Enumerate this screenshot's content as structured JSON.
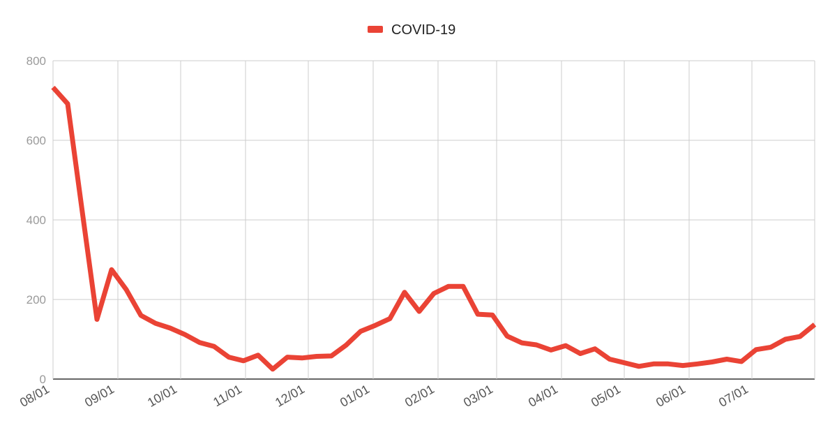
{
  "chart_data": {
    "type": "line",
    "title": "",
    "xlabel": "",
    "ylabel": "",
    "ylim": [
      0,
      800
    ],
    "yticks": [
      0,
      200,
      400,
      600,
      800
    ],
    "grid": true,
    "legend_position": "top-center",
    "x_ticks": [
      "08/01",
      "09/01",
      "10/01",
      "11/01",
      "12/01",
      "01/01",
      "02/01",
      "03/01",
      "04/01",
      "05/01",
      "06/01",
      "07/01"
    ],
    "x": [
      "2020-08-01",
      "2020-08-08",
      "2020-08-15",
      "2020-08-22",
      "2020-08-29",
      "2020-09-05",
      "2020-09-12",
      "2020-09-19",
      "2020-09-26",
      "2020-10-03",
      "2020-10-10",
      "2020-10-17",
      "2020-10-24",
      "2020-10-31",
      "2020-11-07",
      "2020-11-14",
      "2020-11-21",
      "2020-11-28",
      "2020-12-05",
      "2020-12-12",
      "2020-12-19",
      "2020-12-26",
      "2021-01-02",
      "2021-01-09",
      "2021-01-16",
      "2021-01-23",
      "2021-01-30",
      "2021-02-06",
      "2021-02-13",
      "2021-02-20",
      "2021-02-27",
      "2021-03-06",
      "2021-03-13",
      "2021-03-20",
      "2021-03-27",
      "2021-04-03",
      "2021-04-10",
      "2021-04-17",
      "2021-04-24",
      "2021-05-01",
      "2021-05-08",
      "2021-05-15",
      "2021-05-22",
      "2021-05-29",
      "2021-06-05",
      "2021-06-12",
      "2021-06-19",
      "2021-06-26",
      "2021-07-03",
      "2021-07-10",
      "2021-07-17",
      "2021-07-24",
      "2021-07-31"
    ],
    "series": [
      {
        "name": "COVID-19",
        "color": "#ea4335",
        "values": [
          733,
          692,
          420,
          150,
          275,
          225,
          160,
          140,
          128,
          112,
          92,
          82,
          55,
          46,
          60,
          25,
          55,
          53,
          57,
          58,
          85,
          120,
          135,
          152,
          218,
          170,
          215,
          233,
          233,
          163,
          161,
          108,
          91,
          86,
          73,
          84,
          64,
          76,
          50,
          41,
          32,
          38,
          38,
          34,
          38,
          43,
          50,
          44,
          74,
          80,
          100,
          107,
          137
        ]
      }
    ]
  }
}
